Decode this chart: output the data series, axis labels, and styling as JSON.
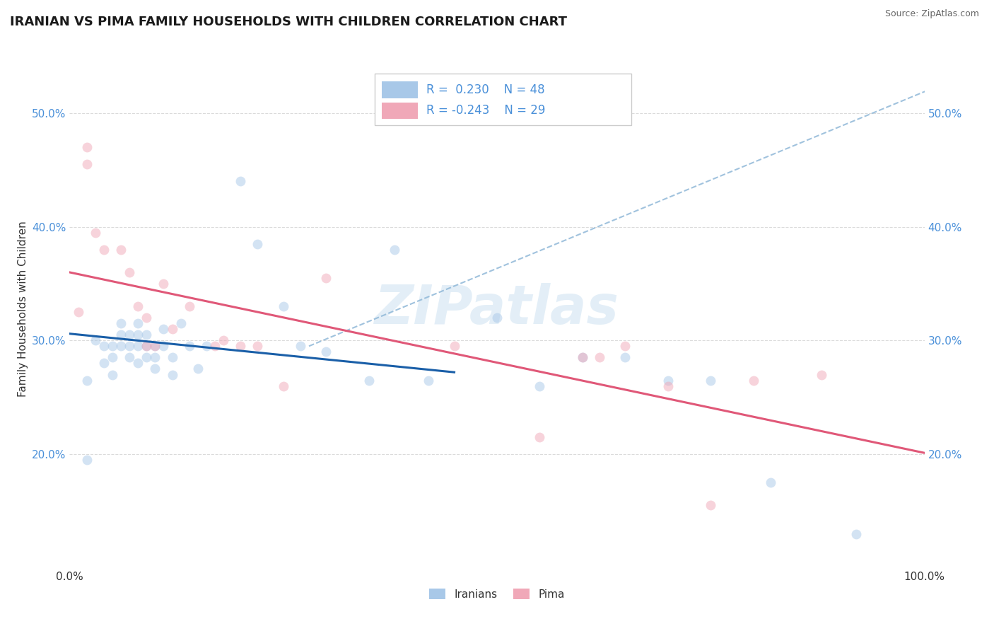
{
  "title": "IRANIAN VS PIMA FAMILY HOUSEHOLDS WITH CHILDREN CORRELATION CHART",
  "source": "Source: ZipAtlas.com",
  "ylabel": "Family Households with Children",
  "watermark": "ZIPatlas",
  "xlim": [
    0.0,
    1.0
  ],
  "ylim": [
    0.1,
    0.555
  ],
  "xticks": [
    0.0,
    0.2,
    0.4,
    0.6,
    0.8,
    1.0
  ],
  "xticklabels": [
    "0.0%",
    "",
    "",
    "",
    "",
    "100.0%"
  ],
  "yticks": [
    0.2,
    0.3,
    0.4,
    0.5
  ],
  "yticklabels": [
    "20.0%",
    "30.0%",
    "40.0%",
    "50.0%"
  ],
  "blue_color": "#a8c8e8",
  "pink_color": "#f0a8b8",
  "line_blue": "#1a5fa8",
  "line_pink": "#e05878",
  "dash_color": "#90b8d8",
  "grid_color": "#cccccc",
  "background": "#ffffff",
  "iranians_x": [
    0.02,
    0.02,
    0.03,
    0.04,
    0.04,
    0.05,
    0.05,
    0.05,
    0.06,
    0.06,
    0.06,
    0.07,
    0.07,
    0.07,
    0.08,
    0.08,
    0.08,
    0.08,
    0.09,
    0.09,
    0.09,
    0.1,
    0.1,
    0.1,
    0.11,
    0.11,
    0.12,
    0.12,
    0.13,
    0.14,
    0.15,
    0.16,
    0.2,
    0.22,
    0.25,
    0.27,
    0.3,
    0.35,
    0.38,
    0.42,
    0.5,
    0.55,
    0.6,
    0.65,
    0.7,
    0.75,
    0.82,
    0.92
  ],
  "iranians_y": [
    0.195,
    0.265,
    0.3,
    0.295,
    0.28,
    0.295,
    0.285,
    0.27,
    0.315,
    0.305,
    0.295,
    0.305,
    0.295,
    0.285,
    0.315,
    0.305,
    0.295,
    0.28,
    0.305,
    0.295,
    0.285,
    0.295,
    0.285,
    0.275,
    0.31,
    0.295,
    0.285,
    0.27,
    0.315,
    0.295,
    0.275,
    0.295,
    0.44,
    0.385,
    0.33,
    0.295,
    0.29,
    0.265,
    0.38,
    0.265,
    0.32,
    0.26,
    0.285,
    0.285,
    0.265,
    0.265,
    0.175,
    0.13
  ],
  "pima_x": [
    0.01,
    0.02,
    0.02,
    0.03,
    0.04,
    0.06,
    0.07,
    0.08,
    0.09,
    0.09,
    0.1,
    0.11,
    0.12,
    0.14,
    0.17,
    0.18,
    0.2,
    0.22,
    0.25,
    0.3,
    0.45,
    0.55,
    0.6,
    0.62,
    0.65,
    0.7,
    0.75,
    0.8,
    0.88
  ],
  "pima_y": [
    0.325,
    0.47,
    0.455,
    0.395,
    0.38,
    0.38,
    0.36,
    0.33,
    0.295,
    0.32,
    0.295,
    0.35,
    0.31,
    0.33,
    0.295,
    0.3,
    0.295,
    0.295,
    0.26,
    0.355,
    0.295,
    0.215,
    0.285,
    0.285,
    0.295,
    0.26,
    0.155,
    0.265,
    0.27
  ],
  "title_fontsize": 13,
  "label_fontsize": 11,
  "tick_fontsize": 11,
  "marker_size": 100,
  "marker_alpha": 0.5
}
